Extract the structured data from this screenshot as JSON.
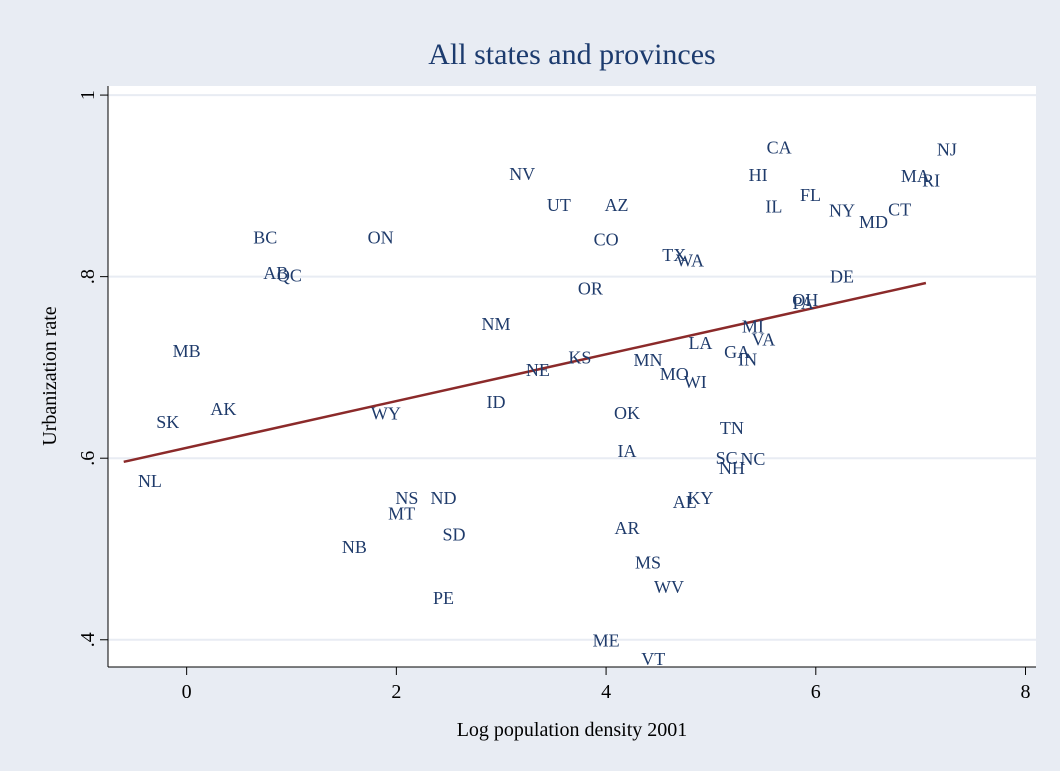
{
  "chart_data": {
    "type": "scatter",
    "title": "All states and provinces",
    "xlabel": "Log population density 2001",
    "ylabel": "Urbanization rate",
    "xlim": [
      -0.75,
      8.1
    ],
    "ylim": [
      0.37,
      1.01
    ],
    "xticks": [
      {
        "value": 0,
        "label": "0"
      },
      {
        "value": 2,
        "label": "2"
      },
      {
        "value": 4,
        "label": "4"
      },
      {
        "value": 6,
        "label": "6"
      },
      {
        "value": 8,
        "label": "8"
      }
    ],
    "yticks": [
      {
        "value": 0.4,
        "label": ".4"
      },
      {
        "value": 0.6,
        "label": ".6"
      },
      {
        "value": 0.8,
        "label": ".8"
      },
      {
        "value": 1.0,
        "label": "1"
      }
    ],
    "grid": true,
    "colors": {
      "background": "#e8ecf3",
      "plot": "#ffffff",
      "grid": "#e8ecf3",
      "labels": "#1f3b6b",
      "fit_line": "#8b2a2a",
      "title": "#1c3b6e"
    },
    "points": [
      {
        "label": "CA",
        "x": 5.65,
        "y": 0.942
      },
      {
        "label": "NJ",
        "x": 7.25,
        "y": 0.94
      },
      {
        "label": "NV",
        "x": 3.2,
        "y": 0.913
      },
      {
        "label": "HI",
        "x": 5.45,
        "y": 0.912
      },
      {
        "label": "MA",
        "x": 6.95,
        "y": 0.911
      },
      {
        "label": "RI",
        "x": 7.1,
        "y": 0.906
      },
      {
        "label": "FL",
        "x": 5.95,
        "y": 0.89
      },
      {
        "label": "UT",
        "x": 3.55,
        "y": 0.879
      },
      {
        "label": "AZ",
        "x": 4.1,
        "y": 0.879
      },
      {
        "label": "IL",
        "x": 5.6,
        "y": 0.877
      },
      {
        "label": "NY",
        "x": 6.25,
        "y": 0.873
      },
      {
        "label": "CT",
        "x": 6.8,
        "y": 0.874
      },
      {
        "label": "MD",
        "x": 6.55,
        "y": 0.86
      },
      {
        "label": "BC",
        "x": 0.75,
        "y": 0.843
      },
      {
        "label": "ON",
        "x": 1.85,
        "y": 0.843
      },
      {
        "label": "CO",
        "x": 4.0,
        "y": 0.841
      },
      {
        "label": "TX",
        "x": 4.65,
        "y": 0.824
      },
      {
        "label": "WA",
        "x": 4.8,
        "y": 0.818
      },
      {
        "label": "AB",
        "x": 0.85,
        "y": 0.804
      },
      {
        "label": "QC",
        "x": 0.98,
        "y": 0.801
      },
      {
        "label": "DE",
        "x": 6.25,
        "y": 0.8
      },
      {
        "label": "OR",
        "x": 3.85,
        "y": 0.787
      },
      {
        "label": "OH",
        "x": 5.9,
        "y": 0.774
      },
      {
        "label": "PA",
        "x": 5.88,
        "y": 0.771
      },
      {
        "label": "NM",
        "x": 2.95,
        "y": 0.748
      },
      {
        "label": "MI",
        "x": 5.4,
        "y": 0.745
      },
      {
        "label": "VA",
        "x": 5.5,
        "y": 0.731
      },
      {
        "label": "LA",
        "x": 4.9,
        "y": 0.727
      },
      {
        "label": "MB",
        "x": 0.0,
        "y": 0.718
      },
      {
        "label": "GA",
        "x": 5.25,
        "y": 0.717
      },
      {
        "label": "KS",
        "x": 3.75,
        "y": 0.711
      },
      {
        "label": "IN",
        "x": 5.35,
        "y": 0.709
      },
      {
        "label": "MN",
        "x": 4.4,
        "y": 0.708
      },
      {
        "label": "NE",
        "x": 3.35,
        "y": 0.697
      },
      {
        "label": "MO",
        "x": 4.65,
        "y": 0.693
      },
      {
        "label": "WI",
        "x": 4.85,
        "y": 0.684
      },
      {
        "label": "ID",
        "x": 2.95,
        "y": 0.662
      },
      {
        "label": "AK",
        "x": 0.35,
        "y": 0.654
      },
      {
        "label": "WY",
        "x": 1.9,
        "y": 0.649
      },
      {
        "label": "OK",
        "x": 4.2,
        "y": 0.65
      },
      {
        "label": "SK",
        "x": -0.18,
        "y": 0.64
      },
      {
        "label": "TN",
        "x": 5.2,
        "y": 0.633
      },
      {
        "label": "IA",
        "x": 4.2,
        "y": 0.608
      },
      {
        "label": "SC",
        "x": 5.15,
        "y": 0.6
      },
      {
        "label": "NC",
        "x": 5.4,
        "y": 0.599
      },
      {
        "label": "NH",
        "x": 5.2,
        "y": 0.589
      },
      {
        "label": "NL",
        "x": -0.35,
        "y": 0.575
      },
      {
        "label": "NS",
        "x": 2.1,
        "y": 0.556
      },
      {
        "label": "ND",
        "x": 2.45,
        "y": 0.556
      },
      {
        "label": "KY",
        "x": 4.9,
        "y": 0.556
      },
      {
        "label": "AL",
        "x": 4.75,
        "y": 0.552
      },
      {
        "label": "MT",
        "x": 2.05,
        "y": 0.539
      },
      {
        "label": "AR",
        "x": 4.2,
        "y": 0.523
      },
      {
        "label": "SD",
        "x": 2.55,
        "y": 0.516
      },
      {
        "label": "NB",
        "x": 1.6,
        "y": 0.502
      },
      {
        "label": "MS",
        "x": 4.4,
        "y": 0.485
      },
      {
        "label": "WV",
        "x": 4.6,
        "y": 0.458
      },
      {
        "label": "PE",
        "x": 2.45,
        "y": 0.446
      },
      {
        "label": "ME",
        "x": 4.0,
        "y": 0.399
      },
      {
        "label": "VT",
        "x": 4.45,
        "y": 0.379
      }
    ],
    "fit_line": {
      "x": [
        -0.6,
        7.05
      ],
      "y": [
        0.596,
        0.793
      ]
    }
  }
}
